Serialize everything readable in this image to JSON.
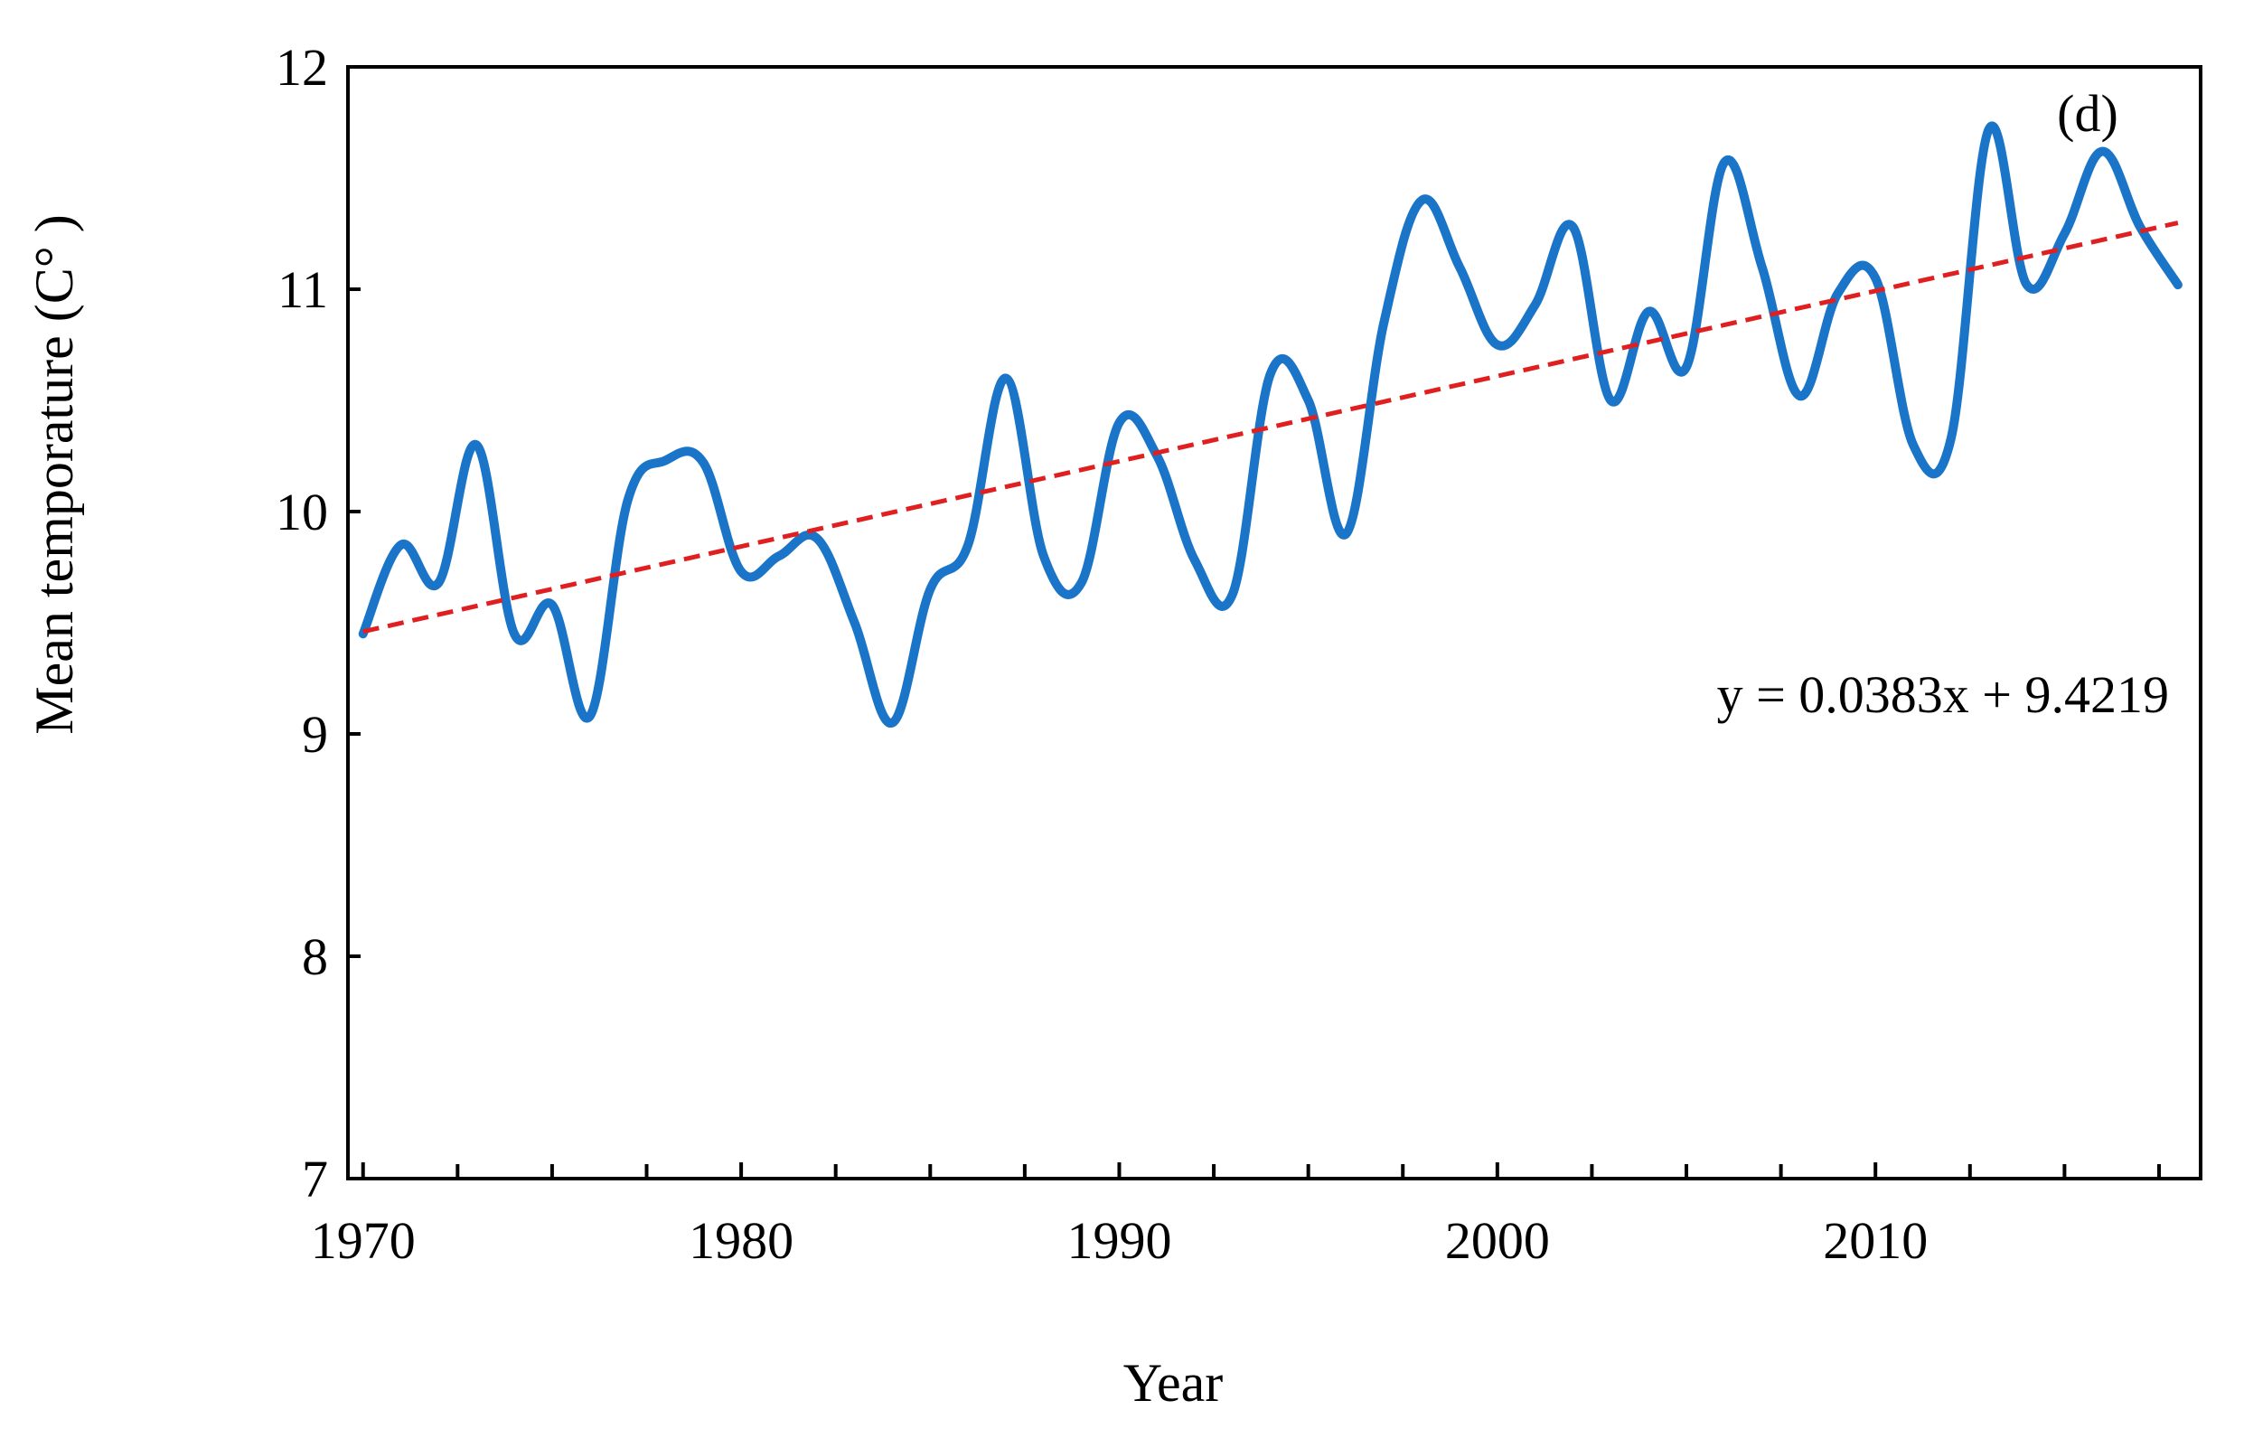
{
  "chart_data": {
    "type": "line",
    "title": "",
    "panel_label": "(d)",
    "xlabel": "Year",
    "ylabel": "Mean temporature (C° )",
    "xlim": [
      1969.6,
      2018.6
    ],
    "ylim": [
      7,
      12
    ],
    "x_ticks": [
      1970,
      1980,
      1990,
      2000,
      2010
    ],
    "x_tick_labels": [
      "1970",
      "1980",
      "1990",
      "2000",
      "2010"
    ],
    "x_minor_ticks": [
      1972.5,
      1975,
      1977.5,
      1982.5,
      1985,
      1987.5,
      1992.5,
      1995,
      1997.5,
      2002.5,
      2005,
      2007.5,
      2012.5,
      2015,
      2017.5
    ],
    "y_ticks": [
      7,
      8,
      9,
      10,
      11,
      12
    ],
    "y_tick_labels": [
      "7",
      "8",
      "9",
      "10",
      "11",
      "12"
    ],
    "grid": false,
    "series": [
      {
        "name": "Mean temperature",
        "color": "#1a75c8",
        "x": [
          1970,
          1971,
          1972,
          1973,
          1974,
          1975,
          1976,
          1977,
          1978,
          1979,
          1980,
          1981,
          1982,
          1983,
          1984,
          1985,
          1986,
          1987,
          1988,
          1989,
          1990,
          1991,
          1992,
          1993,
          1994,
          1995,
          1996,
          1997,
          1998,
          1999,
          2000,
          2001,
          2002,
          2003,
          2004,
          2005,
          2006,
          2007,
          2008,
          2009,
          2010,
          2011,
          2012,
          2013,
          2014,
          2015,
          2016,
          2017,
          2018
        ],
        "values": [
          9.45,
          9.85,
          9.68,
          10.3,
          9.45,
          9.58,
          9.08,
          10.05,
          10.23,
          10.22,
          9.73,
          9.8,
          9.88,
          9.5,
          9.05,
          9.65,
          9.85,
          10.6,
          9.8,
          9.68,
          10.4,
          10.25,
          9.78,
          9.63,
          10.62,
          10.5,
          9.9,
          10.85,
          11.4,
          11.1,
          10.75,
          10.93,
          11.28,
          10.5,
          10.9,
          10.65,
          11.57,
          11.1,
          10.52,
          10.98,
          11.05,
          10.3,
          10.33,
          11.72,
          11.02,
          11.25,
          11.62,
          11.28,
          11.02
        ]
      },
      {
        "name": "Linear trend",
        "color": "#e02020",
        "style": "dashed",
        "x": [
          1970,
          2018
        ],
        "values": [
          9.4602,
          11.2986
        ]
      }
    ],
    "trendline": {
      "equation": "y = 0.0383x + 9.4219",
      "slope": 0.0383,
      "intercept": 9.4219
    }
  }
}
